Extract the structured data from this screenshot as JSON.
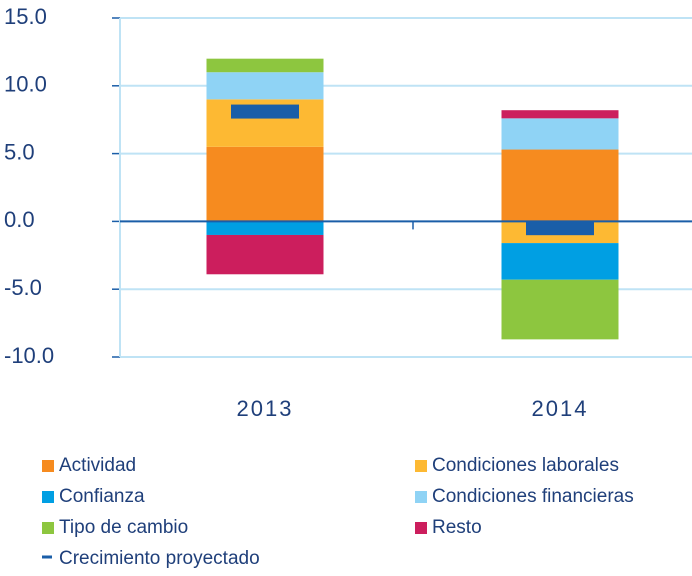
{
  "chart_data": {
    "type": "stacked_bar",
    "categories": [
      "2013",
      "2014"
    ],
    "series": [
      {
        "name": "Actividad",
        "color": "#f68b1f",
        "values": [
          5.5,
          5.3
        ]
      },
      {
        "name": "Condiciones laborales",
        "color": "#fdb933",
        "values": [
          3.5,
          -1.6
        ]
      },
      {
        "name": "Confianza",
        "color": "#009fe3",
        "values": [
          -1.0,
          -2.7
        ]
      },
      {
        "name": "Condiciones financieras",
        "color": "#8fd3f5",
        "values": [
          2.0,
          2.3
        ]
      },
      {
        "name": "Tipo de cambio",
        "color": "#8dc63f",
        "values": [
          1.0,
          -4.4
        ]
      },
      {
        "name": "Resto",
        "color": "#cc1e5d",
        "values": [
          -2.9,
          0.6
        ]
      }
    ],
    "projected": {
      "name": "Crecimiento proyectado",
      "color": "#1a5ea8",
      "values": [
        8.1,
        -0.5
      ]
    },
    "ylim": [
      -10,
      15
    ],
    "yticks": [
      {
        "value": -10,
        "label": "-10.0"
      },
      {
        "value": -5,
        "label": "-5.0"
      },
      {
        "value": 0,
        "label": "0.0"
      },
      {
        "value": 5,
        "label": "5.0"
      },
      {
        "value": 10,
        "label": "10.0"
      },
      {
        "value": 15,
        "label": "15.0"
      }
    ],
    "grid": true
  }
}
